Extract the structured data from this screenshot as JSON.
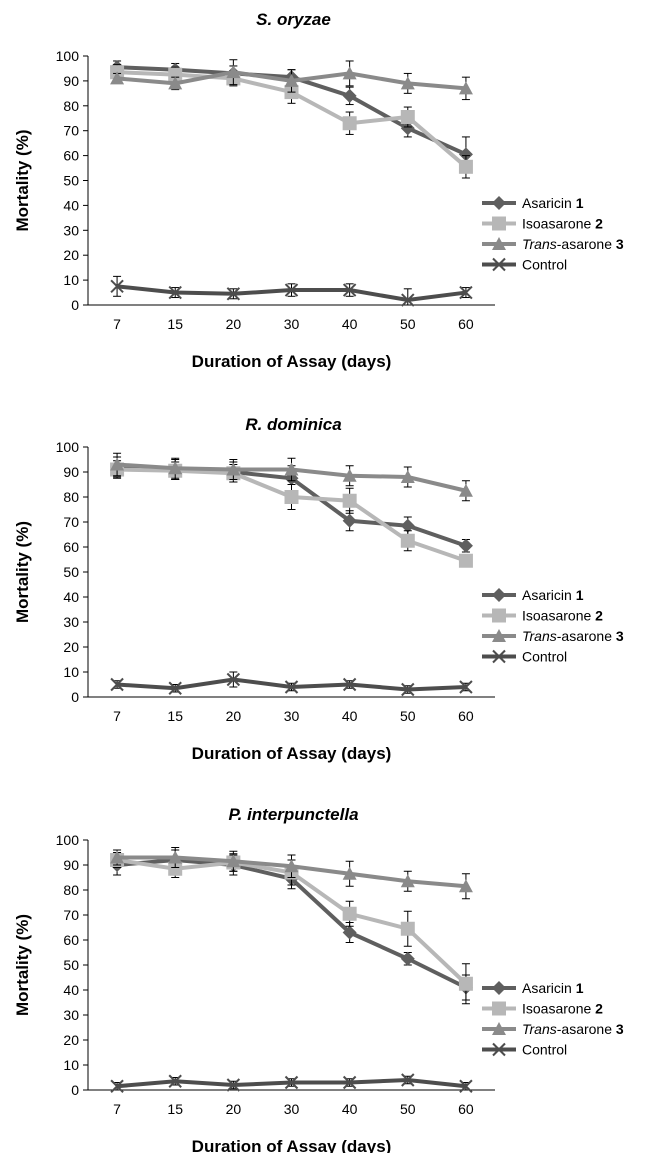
{
  "colors": {
    "asaricin": "#5f5f5f",
    "isoasarone": "#b7b7b7",
    "trans_asarone": "#8a8a8a",
    "control": "#4d4d4d",
    "axis": "#000000"
  },
  "legend": [
    {
      "prefix": "",
      "italic": "",
      "suffix": "Asaricin ",
      "bold": "1",
      "marker": "diamond",
      "color_key": "asaricin"
    },
    {
      "prefix": "",
      "italic": "",
      "suffix": "Isoasarone ",
      "bold": "2",
      "marker": "square",
      "color_key": "isoasarone"
    },
    {
      "prefix": "",
      "italic": "Trans",
      "suffix": "-asarone ",
      "bold": "3",
      "marker": "triangle",
      "color_key": "trans_asarone"
    },
    {
      "prefix": "",
      "italic": "",
      "suffix": "Control",
      "bold": "",
      "marker": "x",
      "color_key": "control"
    }
  ],
  "chart_data": [
    {
      "type": "line",
      "title": "S. oryzae",
      "xlabel": "Duration of Assay (days)",
      "ylabel": "Mortality (%)",
      "categories": [
        "7",
        "15",
        "20",
        "30",
        "40",
        "50",
        "60"
      ],
      "ylim": [
        0,
        100
      ],
      "yticks": [
        0,
        10,
        20,
        30,
        40,
        50,
        60,
        70,
        80,
        90,
        100
      ],
      "grid": false,
      "legend_position": "right",
      "series": [
        {
          "name": "Asaricin 1",
          "marker": "diamond",
          "color_key": "asaricin",
          "values": [
            95.5,
            94.5,
            93,
            91.5,
            84,
            71,
            60.5
          ],
          "errors": [
            2.5,
            2.5,
            3,
            3,
            3.5,
            3.5,
            7
          ]
        },
        {
          "name": "Isoasarone 2",
          "marker": "square",
          "color_key": "isoasarone",
          "values": [
            93.5,
            92.5,
            91,
            85.5,
            73,
            75.5,
            55.5
          ],
          "errors": [
            3,
            3,
            3,
            4.5,
            4.5,
            4,
            4.5
          ]
        },
        {
          "name": "Trans-asarone 3",
          "marker": "triangle",
          "color_key": "trans_asarone",
          "values": [
            91,
            89,
            93.5,
            90,
            93,
            89,
            87
          ],
          "errors": [
            2,
            2.5,
            5,
            4.5,
            5,
            4,
            4.5
          ]
        },
        {
          "name": "Control",
          "marker": "x",
          "color_key": "control",
          "values": [
            7.5,
            5,
            4.5,
            6,
            6,
            2,
            5
          ],
          "errors": [
            4,
            2,
            2,
            2.5,
            2.5,
            4.5,
            2
          ]
        }
      ]
    },
    {
      "type": "line",
      "title": "R. dominica",
      "xlabel": "Duration of Assay (days)",
      "ylabel": "Mortality (%)",
      "categories": [
        "7",
        "15",
        "20",
        "30",
        "40",
        "50",
        "60"
      ],
      "ylim": [
        0,
        100
      ],
      "yticks": [
        0,
        10,
        20,
        30,
        40,
        50,
        60,
        70,
        80,
        90,
        100
      ],
      "grid": false,
      "legend_position": "right",
      "series": [
        {
          "name": "Asaricin 1",
          "marker": "diamond",
          "color_key": "asaricin",
          "values": [
            92,
            91,
            90,
            87.5,
            70.5,
            68.5,
            60.5
          ],
          "errors": [
            4,
            4,
            4,
            5,
            4,
            3.5,
            2.5
          ]
        },
        {
          "name": "Isoasarone 2",
          "marker": "square",
          "color_key": "isoasarone",
          "values": [
            91,
            90.5,
            89.5,
            80,
            78.5,
            62.5,
            54.5
          ],
          "errors": [
            3.5,
            3.5,
            3.5,
            5,
            5,
            4,
            2
          ]
        },
        {
          "name": "Trans-asarone 3",
          "marker": "triangle",
          "color_key": "trans_asarone",
          "values": [
            93,
            91.5,
            91,
            91,
            88.5,
            88,
            82.5
          ],
          "errors": [
            4.5,
            4,
            4,
            4.5,
            4,
            4,
            4
          ]
        },
        {
          "name": "Control",
          "marker": "x",
          "color_key": "control",
          "values": [
            5,
            3.5,
            7,
            4,
            5,
            3,
            4
          ],
          "errors": [
            1.5,
            1.5,
            3,
            1.5,
            1.5,
            1.5,
            1.5
          ]
        }
      ]
    },
    {
      "type": "line",
      "title": "P.  interpunctella",
      "xlabel": "Duration of Assay (days)",
      "ylabel": "Mortality (%)",
      "categories": [
        "7",
        "15",
        "20",
        "30",
        "40",
        "50",
        "60"
      ],
      "ylim": [
        0,
        100
      ],
      "yticks": [
        0,
        10,
        20,
        30,
        40,
        50,
        60,
        70,
        80,
        90,
        100
      ],
      "grid": false,
      "legend_position": "right",
      "series": [
        {
          "name": "Asaricin 1",
          "marker": "diamond",
          "color_key": "asaricin",
          "values": [
            90,
            92,
            90,
            84.5,
            63,
            52.5,
            41
          ],
          "errors": [
            4,
            4,
            4,
            4,
            4,
            2.5,
            5
          ]
        },
        {
          "name": "Isoasarone 2",
          "marker": "square",
          "color_key": "isoasarone",
          "values": [
            92,
            88.5,
            91,
            87,
            70.5,
            64.5,
            42.5
          ],
          "errors": [
            3,
            3.5,
            3.5,
            5,
            5,
            7,
            8
          ]
        },
        {
          "name": "Trans-asarone 3",
          "marker": "triangle",
          "color_key": "trans_asarone",
          "values": [
            93,
            93,
            91.5,
            89.5,
            86.5,
            83.5,
            81.5
          ],
          "errors": [
            3,
            4,
            4,
            4.5,
            5,
            4,
            5
          ]
        },
        {
          "name": "Control",
          "marker": "x",
          "color_key": "control",
          "values": [
            1.5,
            3.5,
            2,
            3,
            3,
            4,
            1.5
          ],
          "errors": [
            1.5,
            1.5,
            1.5,
            1.5,
            1.5,
            1.5,
            1.5
          ]
        }
      ]
    }
  ]
}
